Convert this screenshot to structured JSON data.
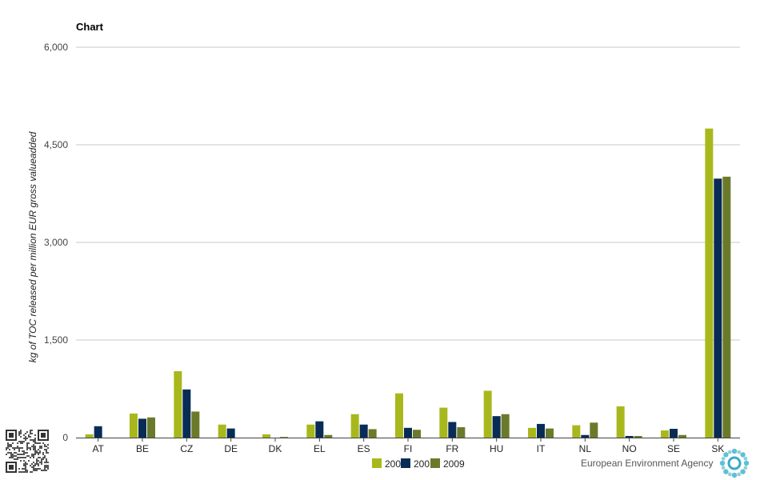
{
  "chart_data": {
    "type": "bar",
    "title": "Chart",
    "ylabel": "kg of TOC released per million EUR gross valueadded",
    "xlabel": "",
    "ylim": [
      0,
      6000
    ],
    "yticks": [
      0,
      1500,
      3000,
      4500,
      6000
    ],
    "ytick_labels": [
      "0",
      "1,500",
      "3,000",
      "4,500",
      "6,000"
    ],
    "grid": true,
    "legend_position": "bottom",
    "categories": [
      "AT",
      "BE",
      "CZ",
      "DE",
      "DK",
      "EL",
      "ES",
      "FI",
      "FR",
      "HU",
      "IT",
      "NL",
      "NO",
      "SE",
      "SK"
    ],
    "series": [
      {
        "name": "200",
        "color": "#a8b81c",
        "values": [
          50,
          370,
          1020,
          200,
          50,
          200,
          360,
          680,
          460,
          720,
          150,
          190,
          480,
          110,
          4750
        ]
      },
      {
        "name": "200",
        "color": "#082c55",
        "values": [
          175,
          290,
          740,
          140,
          0,
          250,
          200,
          150,
          240,
          330,
          210,
          40,
          25,
          135,
          3980
        ]
      },
      {
        "name": "2009",
        "color": "#6b7a2a",
        "values": [
          0,
          310,
          400,
          0,
          10,
          40,
          130,
          120,
          160,
          360,
          140,
          230,
          25,
          40,
          4010
        ]
      }
    ]
  },
  "footer": {
    "agency_name": "European Environment Agency"
  },
  "icons": {
    "qr": "qr-code-icon",
    "logo": "eea-logo-icon"
  }
}
